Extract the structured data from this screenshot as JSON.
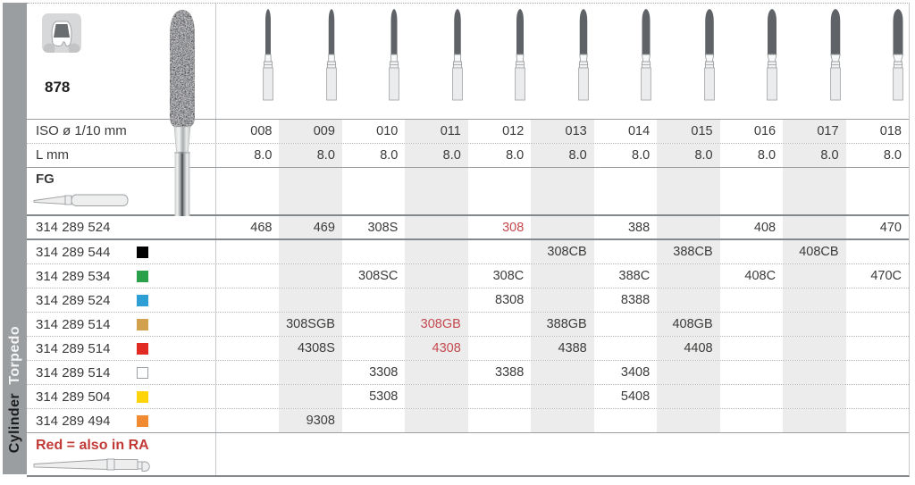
{
  "sidebar": {
    "labels": [
      {
        "text": "Torpedo",
        "style": "light"
      },
      {
        "text": "Cylinder",
        "style": "dark"
      }
    ]
  },
  "product": {
    "figure_number": "878",
    "head_shape": "torpedo",
    "icon": "crown-icon"
  },
  "specs": {
    "iso_label": "ISO ø 1/10 mm",
    "l_label": "L mm",
    "shank_label": "FG"
  },
  "table": {
    "iso_values": [
      "008",
      "009",
      "010",
      "011",
      "012",
      "013",
      "014",
      "015",
      "016",
      "017",
      "018"
    ],
    "l_values": [
      "8.0",
      "8.0",
      "8.0",
      "8.0",
      "8.0",
      "8.0",
      "8.0",
      "8.0",
      "8.0",
      "8.0",
      "8.0"
    ],
    "rows": [
      {
        "article": "314 289 524",
        "grit_name": null,
        "grit_color": null,
        "cells": [
          {
            "col": 0,
            "code": "468"
          },
          {
            "col": 1,
            "code": "469"
          },
          {
            "col": 2,
            "code": "308S"
          },
          {
            "col": 4,
            "code": "308",
            "red": true
          },
          {
            "col": 6,
            "code": "388"
          },
          {
            "col": 8,
            "code": "408"
          },
          {
            "col": 10,
            "code": "470"
          }
        ]
      },
      {
        "article": "314 289 544",
        "grit_name": "black",
        "grit_color": "#000000",
        "cells": [
          {
            "col": 5,
            "code": "308CB"
          },
          {
            "col": 7,
            "code": "388CB"
          },
          {
            "col": 9,
            "code": "408CB"
          }
        ]
      },
      {
        "article": "314 289 534",
        "grit_name": "green",
        "grit_color": "#29a049",
        "cells": [
          {
            "col": 2,
            "code": "308SC"
          },
          {
            "col": 4,
            "code": "308C"
          },
          {
            "col": 6,
            "code": "388C"
          },
          {
            "col": 8,
            "code": "408C"
          },
          {
            "col": 10,
            "code": "470C"
          }
        ]
      },
      {
        "article": "314 289 524",
        "grit_name": "blue",
        "grit_color": "#2e9fd4",
        "cells": [
          {
            "col": 4,
            "code": "8308"
          },
          {
            "col": 6,
            "code": "8388"
          }
        ]
      },
      {
        "article": "314 289 514",
        "grit_name": "gold",
        "grit_color": "#d2a14e",
        "cells": [
          {
            "col": 1,
            "code": "308SGB"
          },
          {
            "col": 3,
            "code": "308GB",
            "red": true
          },
          {
            "col": 5,
            "code": "388GB"
          },
          {
            "col": 7,
            "code": "408GB"
          }
        ]
      },
      {
        "article": "314 289 514",
        "grit_name": "red",
        "grit_color": "#e02a22",
        "cells": [
          {
            "col": 1,
            "code": "4308S"
          },
          {
            "col": 3,
            "code": "4308",
            "red": true
          },
          {
            "col": 5,
            "code": "4388"
          },
          {
            "col": 7,
            "code": "4408"
          }
        ]
      },
      {
        "article": "314 289 514",
        "grit_name": "white",
        "grit_color": "#ffffff",
        "cells": [
          {
            "col": 2,
            "code": "3308"
          },
          {
            "col": 4,
            "code": "3388"
          },
          {
            "col": 6,
            "code": "3408"
          }
        ]
      },
      {
        "article": "314 289 504",
        "grit_name": "yellow",
        "grit_color": "#ffd40a",
        "cells": [
          {
            "col": 2,
            "code": "5308"
          },
          {
            "col": 6,
            "code": "5408"
          }
        ]
      },
      {
        "article": "314 289 494",
        "grit_name": "orange",
        "grit_color": "#f08b31",
        "cells": [
          {
            "col": 1,
            "code": "9308"
          }
        ]
      }
    ]
  },
  "footer": {
    "note": "Red = also in RA"
  },
  "colors": {
    "red_code": "#c4494e",
    "note_red": "#c23a36",
    "stripe": "#ececec",
    "sidebar_bg": "#9b9ea1",
    "bur_tip": "#5f6266"
  }
}
